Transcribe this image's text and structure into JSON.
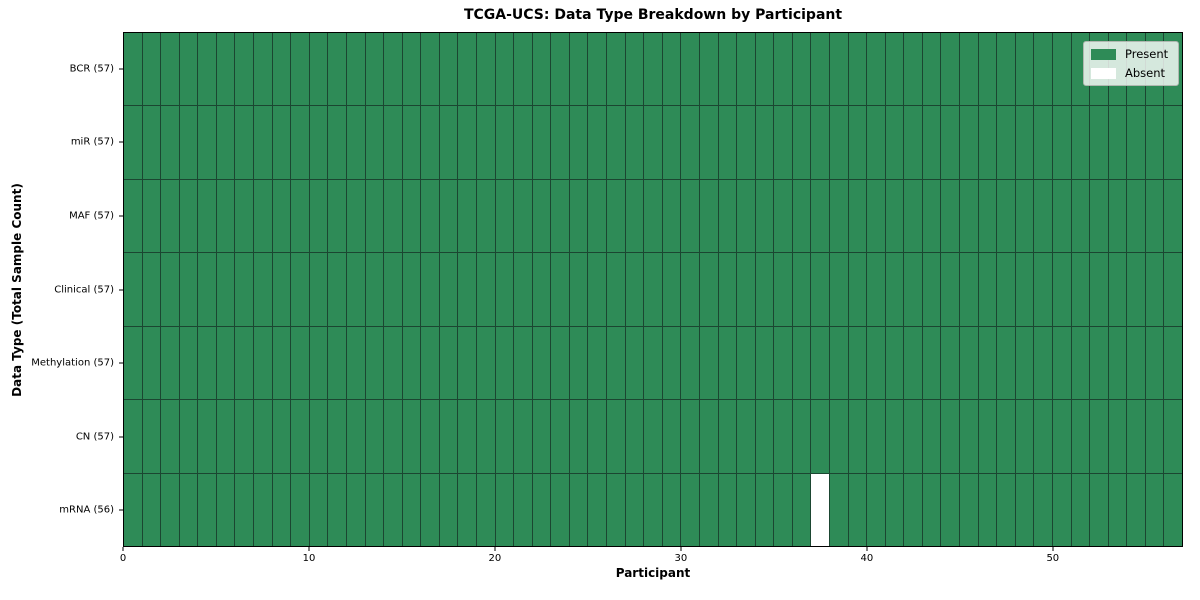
{
  "chart_data": {
    "type": "heatmap",
    "title": "TCGA-UCS: Data Type Breakdown by Participant",
    "xlabel": "Participant",
    "ylabel": "Data Type (Total Sample Count)",
    "x_range": [
      0,
      57
    ],
    "x_ticks": [
      0,
      10,
      20,
      30,
      40,
      50
    ],
    "n_participants": 57,
    "rows": [
      {
        "label": "BCR (57)",
        "data_type": "BCR",
        "total_sample_count": 57,
        "absent_participants": []
      },
      {
        "label": "miR (57)",
        "data_type": "miR",
        "total_sample_count": 57,
        "absent_participants": []
      },
      {
        "label": "MAF (57)",
        "data_type": "MAF",
        "total_sample_count": 57,
        "absent_participants": []
      },
      {
        "label": "Clinical (57)",
        "data_type": "Clinical",
        "total_sample_count": 57,
        "absent_participants": []
      },
      {
        "label": "Methylation (57)",
        "data_type": "Methylation",
        "total_sample_count": 57,
        "absent_participants": []
      },
      {
        "label": "CN (57)",
        "data_type": "CN",
        "total_sample_count": 57,
        "absent_participants": []
      },
      {
        "label": "mRNA (56)",
        "data_type": "mRNA",
        "total_sample_count": 56,
        "absent_participants": [
          37
        ]
      }
    ],
    "legend": [
      {
        "label": "Present",
        "color": "#2e8b57"
      },
      {
        "label": "Absent",
        "color": "#ffffff"
      }
    ],
    "legend_position": "upper right",
    "colors": {
      "present": "#2e8b57",
      "absent": "#ffffff",
      "cell_edge": "#1b4631",
      "axes_edge": "#000000",
      "figure_bg": "#ffffff"
    },
    "grid": "cell-borders"
  }
}
